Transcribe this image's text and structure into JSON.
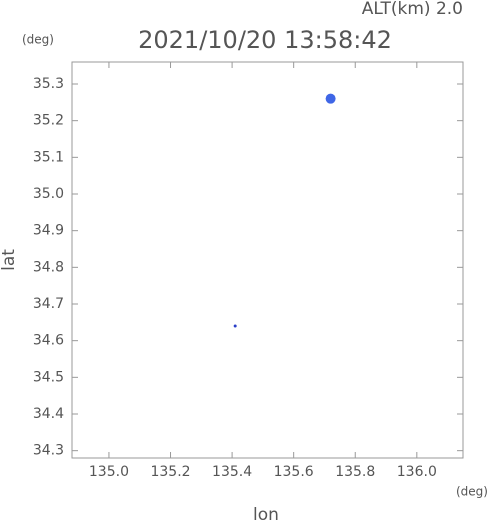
{
  "chart_data": {
    "type": "scatter",
    "title": "2021/10/20 13:58:42",
    "annotation": "ALT(km) 2.0",
    "x_label": "lon",
    "y_label": "lat",
    "x_unit": "(deg)",
    "y_unit": "(deg)",
    "x": [
      135.72,
      135.41
    ],
    "values": [
      35.26,
      34.64
    ],
    "sizes": [
      5,
      1.5
    ],
    "colors": [
      "#3f66e6",
      "#2a3fc8"
    ],
    "xlim": [
      134.88,
      136.15
    ],
    "ylim": [
      34.28,
      35.36
    ],
    "xticks": [
      {
        "value": 135.0,
        "label": "135.0"
      },
      135.2,
      135.4,
      135.6,
      135.8,
      {
        "value": 136.0,
        "label": "136.0"
      }
    ],
    "yticks": [
      34.3,
      34.4,
      34.5,
      34.6,
      34.7,
      34.8,
      34.9,
      {
        "value": 35.0,
        "label": "35.0"
      },
      35.1,
      35.2,
      35.3
    ]
  }
}
